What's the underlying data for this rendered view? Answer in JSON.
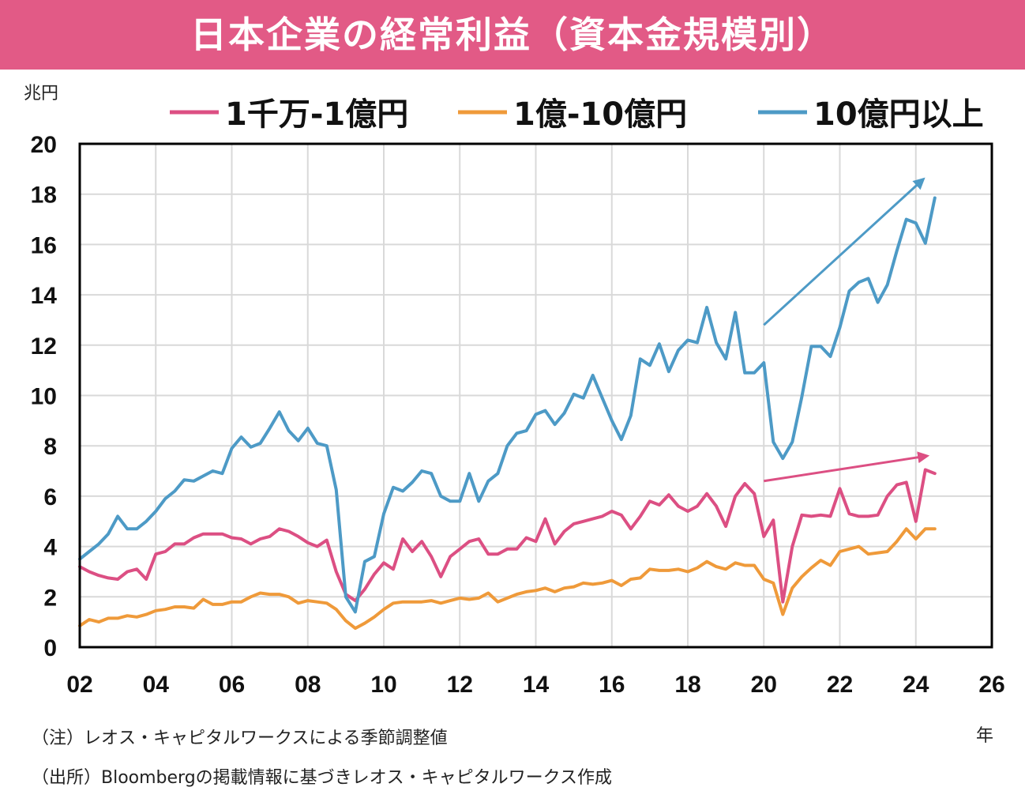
{
  "title": "日本企業の経常利益（資本金規模別）",
  "notes": {
    "note1": "（注）レオス・キャピタルワークスによる季節調整値",
    "source": "（出所）Bloombergの掲載情報に基づきレオス・キャピタルワークス作成"
  },
  "chart_data": {
    "type": "line",
    "ylabel": "兆円",
    "xlabel": "年",
    "ylim": [
      0,
      20
    ],
    "xlim": [
      2002,
      2026
    ],
    "yticks": [
      0,
      2,
      4,
      6,
      8,
      10,
      12,
      14,
      16,
      18,
      20
    ],
    "xticks": [
      2002,
      2004,
      2006,
      2008,
      2010,
      2012,
      2014,
      2016,
      2018,
      2020,
      2022,
      2024,
      2026
    ],
    "xtick_labels": [
      "02",
      "04",
      "06",
      "08",
      "10",
      "12",
      "14",
      "16",
      "18",
      "20",
      "22",
      "24",
      "26"
    ],
    "grid": true,
    "legend_position": "top",
    "x": [
      2002.0,
      2002.25,
      2002.5,
      2002.75,
      2003.0,
      2003.25,
      2003.5,
      2003.75,
      2004.0,
      2004.25,
      2004.5,
      2004.75,
      2005.0,
      2005.25,
      2005.5,
      2005.75,
      2006.0,
      2006.25,
      2006.5,
      2006.75,
      2007.0,
      2007.25,
      2007.5,
      2007.75,
      2008.0,
      2008.25,
      2008.5,
      2008.75,
      2009.0,
      2009.25,
      2009.5,
      2009.75,
      2010.0,
      2010.25,
      2010.5,
      2010.75,
      2011.0,
      2011.25,
      2011.5,
      2011.75,
      2012.0,
      2012.25,
      2012.5,
      2012.75,
      2013.0,
      2013.25,
      2013.5,
      2013.75,
      2014.0,
      2014.25,
      2014.5,
      2014.75,
      2015.0,
      2015.25,
      2015.5,
      2015.75,
      2016.0,
      2016.25,
      2016.5,
      2016.75,
      2017.0,
      2017.25,
      2017.5,
      2017.75,
      2018.0,
      2018.25,
      2018.5,
      2018.75,
      2019.0,
      2019.25,
      2019.5,
      2019.75,
      2020.0,
      2020.25,
      2020.5,
      2020.75,
      2021.0,
      2021.25,
      2021.5,
      2021.75,
      2022.0,
      2022.25,
      2022.5,
      2022.75,
      2023.0,
      2023.25,
      2023.5,
      2023.75,
      2024.0,
      2024.25,
      2024.5
    ],
    "series": [
      {
        "name": "1千万-1億円",
        "color": "#dc4f83",
        "values": [
          3.2,
          3.0,
          2.85,
          2.75,
          2.7,
          3.0,
          3.1,
          2.7,
          3.7,
          3.8,
          4.1,
          4.1,
          4.35,
          4.5,
          4.5,
          4.5,
          4.35,
          4.3,
          4.1,
          4.3,
          4.4,
          4.7,
          4.6,
          4.4,
          4.15,
          4.0,
          4.25,
          3.0,
          2.1,
          1.85,
          2.3,
          2.9,
          3.35,
          3.1,
          4.3,
          3.8,
          4.2,
          3.6,
          2.8,
          3.6,
          3.9,
          4.2,
          4.3,
          3.7,
          3.7,
          3.9,
          3.9,
          4.35,
          4.2,
          5.1,
          4.1,
          4.6,
          4.9,
          5.0,
          5.1,
          5.2,
          5.4,
          5.25,
          4.7,
          5.2,
          5.8,
          5.65,
          6.05,
          5.6,
          5.4,
          5.6,
          6.1,
          5.6,
          4.8,
          6.0,
          6.5,
          6.1,
          4.4,
          5.05,
          1.8,
          4.0,
          5.25,
          5.2,
          5.25,
          5.2,
          6.3,
          5.3,
          5.2,
          5.2,
          5.25,
          6.0,
          6.45,
          6.55,
          5.0,
          7.05,
          6.9
        ]
      },
      {
        "name": "1億-10億円",
        "color": "#ef9a3a",
        "values": [
          0.85,
          1.1,
          1.0,
          1.15,
          1.15,
          1.25,
          1.2,
          1.3,
          1.45,
          1.5,
          1.6,
          1.6,
          1.55,
          1.9,
          1.7,
          1.7,
          1.8,
          1.8,
          2.0,
          2.15,
          2.1,
          2.1,
          2.0,
          1.75,
          1.85,
          1.8,
          1.75,
          1.5,
          1.05,
          0.75,
          0.95,
          1.2,
          1.5,
          1.75,
          1.8,
          1.8,
          1.8,
          1.85,
          1.75,
          1.85,
          1.95,
          1.9,
          1.95,
          2.15,
          1.8,
          1.95,
          2.1,
          2.2,
          2.25,
          2.35,
          2.2,
          2.35,
          2.4,
          2.55,
          2.5,
          2.55,
          2.65,
          2.45,
          2.7,
          2.75,
          3.1,
          3.05,
          3.05,
          3.1,
          3.0,
          3.15,
          3.4,
          3.2,
          3.1,
          3.35,
          3.25,
          3.25,
          2.7,
          2.55,
          1.3,
          2.35,
          2.8,
          3.15,
          3.45,
          3.25,
          3.8,
          3.9,
          4.0,
          3.7,
          3.75,
          3.8,
          4.2,
          4.7,
          4.3,
          4.7,
          4.7
        ]
      },
      {
        "name": "10億円以上",
        "color": "#4d9ac6",
        "values": [
          3.5,
          3.8,
          4.1,
          4.5,
          5.2,
          4.7,
          4.7,
          5.0,
          5.4,
          5.9,
          6.2,
          6.65,
          6.6,
          6.8,
          7.0,
          6.9,
          7.9,
          8.35,
          7.95,
          8.1,
          8.7,
          9.35,
          8.6,
          8.2,
          8.7,
          8.1,
          8.0,
          6.25,
          2.0,
          1.4,
          3.4,
          3.6,
          5.3,
          6.35,
          6.2,
          6.55,
          7.0,
          6.9,
          6.0,
          5.8,
          5.8,
          6.9,
          5.8,
          6.6,
          6.9,
          8.0,
          8.5,
          8.6,
          9.25,
          9.4,
          8.85,
          9.3,
          10.05,
          9.9,
          10.8,
          9.9,
          9.0,
          8.25,
          9.2,
          11.45,
          11.2,
          12.05,
          10.95,
          11.8,
          12.2,
          12.1,
          13.5,
          12.1,
          11.45,
          13.3,
          10.9,
          10.9,
          11.3,
          8.15,
          7.5,
          8.15,
          9.95,
          11.95,
          11.95,
          11.55,
          12.7,
          14.15,
          14.5,
          14.65,
          13.7,
          14.4,
          15.75,
          17.0,
          16.85,
          16.05,
          17.85
        ]
      }
    ],
    "annotations": [
      {
        "type": "trend-arrow",
        "series": "10億円以上"
      },
      {
        "type": "trend-arrow",
        "series": "1千万-1億円"
      }
    ]
  }
}
